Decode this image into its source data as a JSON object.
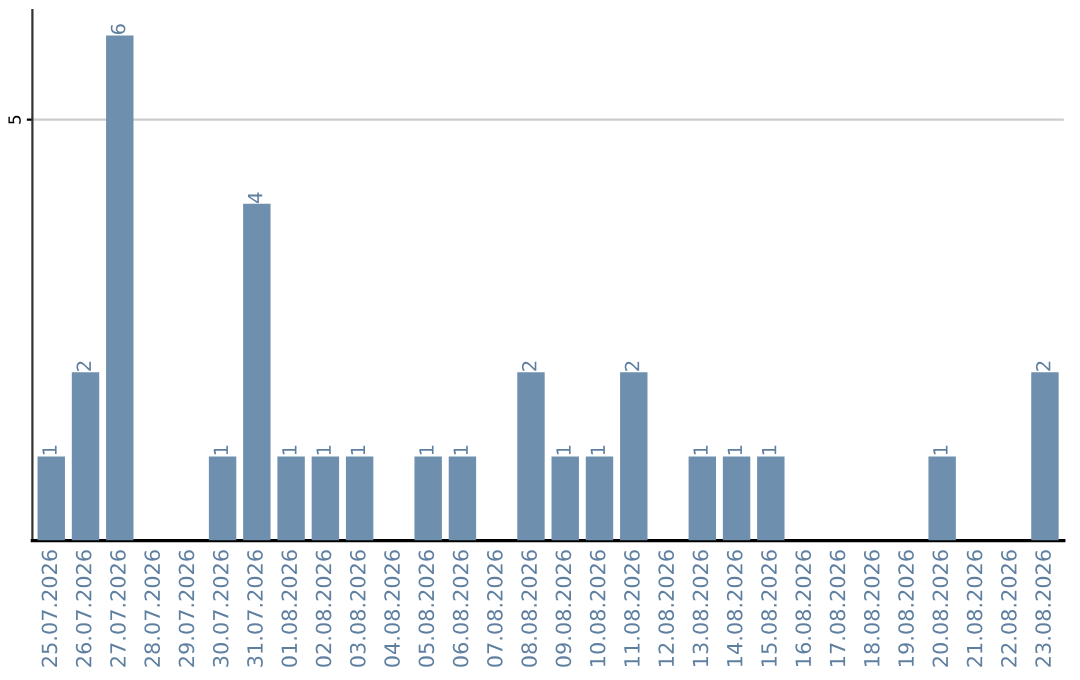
{
  "chart_data": {
    "type": "bar",
    "categories": [
      "25.07.2026",
      "26.07.2026",
      "27.07.2026",
      "28.07.2026",
      "29.07.2026",
      "30.07.2026",
      "31.07.2026",
      "01.08.2026",
      "02.08.2026",
      "03.08.2026",
      "04.08.2026",
      "05.08.2026",
      "06.08.2026",
      "07.08.2026",
      "08.08.2026",
      "09.08.2026",
      "10.08.2026",
      "11.08.2026",
      "12.08.2026",
      "13.08.2026",
      "14.08.2026",
      "15.08.2026",
      "16.08.2026",
      "17.08.2026",
      "18.08.2026",
      "19.08.2026",
      "20.08.2026",
      "21.08.2026",
      "22.08.2026",
      "23.08.2026"
    ],
    "values": [
      1,
      2,
      6,
      0,
      0,
      1,
      4,
      1,
      1,
      1,
      0,
      1,
      1,
      0,
      2,
      1,
      1,
      2,
      0,
      1,
      1,
      1,
      0,
      0,
      0,
      0,
      1,
      0,
      0,
      2
    ],
    "value_labels": [
      "1",
      "2",
      "6",
      null,
      null,
      "1",
      "4",
      "1",
      "1",
      "1",
      null,
      "1",
      "1",
      null,
      "2",
      "1",
      "1",
      "2",
      null,
      "1",
      "1",
      "1",
      null,
      null,
      null,
      null,
      "1",
      null,
      null,
      "2"
    ],
    "color": "#6e8fad",
    "ylim": [
      0,
      6.3
    ],
    "yticks": [
      5
    ],
    "grid": "y"
  }
}
